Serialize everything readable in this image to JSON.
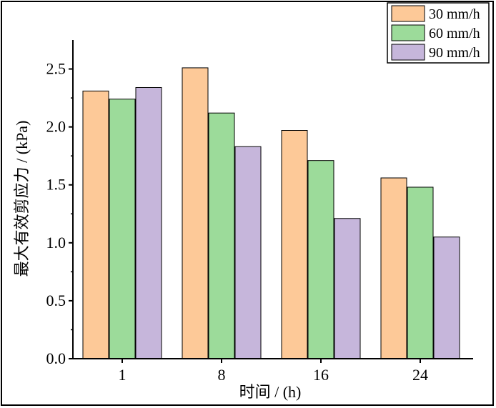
{
  "chart_data": {
    "type": "bar",
    "title": "",
    "xlabel": "时间 / (h)",
    "ylabel": "最大有效剪应力 / (kPa)",
    "categories": [
      "1",
      "8",
      "16",
      "24"
    ],
    "series": [
      {
        "name": "30 mm/h",
        "color": "#fdc998",
        "values": [
          2.31,
          2.51,
          1.97,
          1.56
        ]
      },
      {
        "name": "60 mm/h",
        "color": "#9cdb9a",
        "values": [
          2.24,
          2.12,
          1.71,
          1.48
        ]
      },
      {
        "name": "90 mm/h",
        "color": "#c6b6db",
        "values": [
          2.34,
          1.83,
          1.21,
          1.05
        ]
      }
    ],
    "ylim": [
      0,
      2.75
    ],
    "yticks": [
      "0.0",
      "0.5",
      "1.0",
      "1.5",
      "2.0",
      "2.5"
    ],
    "legend_position": "top-right",
    "grid": false
  }
}
